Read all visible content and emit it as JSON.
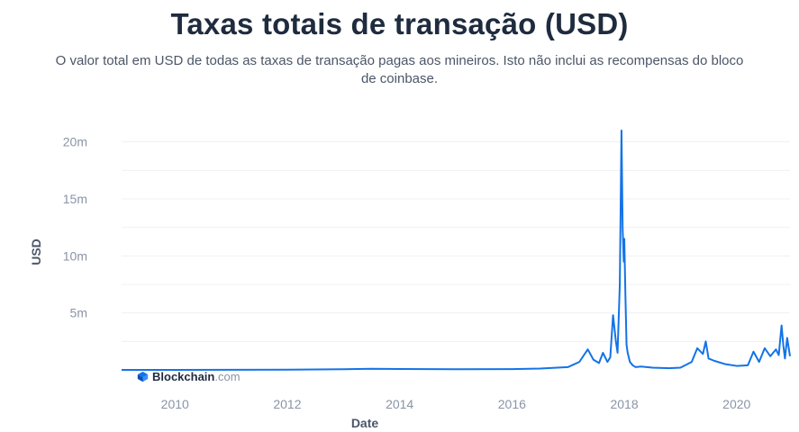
{
  "page": {
    "title": "Taxas totais de transação (USD)",
    "subtitle": "O valor total em USD de todas as taxas de transação pagas aos mineiros. Isto não inclui as recompensas do bloco de coinbase."
  },
  "logo": {
    "name": "Blockchain",
    "suffix": ".com"
  },
  "chart_data": {
    "type": "line",
    "xlabel": "Date",
    "ylabel": "USD",
    "xlim": [
      2009.05,
      2020.95
    ],
    "ylim": [
      0,
      21000000
    ],
    "x_ticks": [
      2010,
      2012,
      2014,
      2016,
      2018,
      2020
    ],
    "x_tick_labels": [
      "2010",
      "2012",
      "2014",
      "2016",
      "2018",
      "2020"
    ],
    "y_ticks": [
      5000000,
      10000000,
      15000000,
      20000000
    ],
    "y_tick_labels": [
      "5m",
      "10m",
      "15m",
      "20m"
    ],
    "grid": true,
    "color": "#1473e6",
    "series": [
      {
        "x": [
          2009.05,
          2010.0,
          2011.0,
          2012.0,
          2013.0,
          2013.5,
          2014.0,
          2015.0,
          2016.0,
          2016.5,
          2017.0,
          2017.2,
          2017.35,
          2017.45,
          2017.55,
          2017.62,
          2017.7,
          2017.75,
          2017.8,
          2017.85,
          2017.88,
          2017.92,
          2017.95,
          2017.97,
          2017.99,
          2018.0,
          2018.02,
          2018.04,
          2018.06,
          2018.1,
          2018.15,
          2018.2,
          2018.3,
          2018.5,
          2018.8,
          2019.0,
          2019.2,
          2019.3,
          2019.4,
          2019.45,
          2019.5,
          2019.6,
          2019.8,
          2020.0,
          2020.2,
          2020.3,
          2020.4,
          2020.5,
          2020.6,
          2020.7,
          2020.75,
          2020.8,
          2020.83,
          2020.86,
          2020.9,
          2020.95
        ],
        "y": [
          0,
          0,
          10000,
          20000,
          60000,
          100000,
          80000,
          60000,
          70000,
          120000,
          250000,
          700000,
          1800000,
          900000,
          600000,
          1500000,
          700000,
          1100000,
          4800000,
          2500000,
          1500000,
          7500000,
          21000000,
          12500000,
          9500000,
          11500000,
          6500000,
          2200000,
          1500000,
          700000,
          400000,
          250000,
          300000,
          200000,
          150000,
          200000,
          700000,
          1900000,
          1400000,
          2500000,
          1000000,
          800000,
          500000,
          350000,
          400000,
          1600000,
          700000,
          1900000,
          1200000,
          1800000,
          1300000,
          3900000,
          2200000,
          1000000,
          2800000,
          1200000
        ]
      }
    ]
  }
}
